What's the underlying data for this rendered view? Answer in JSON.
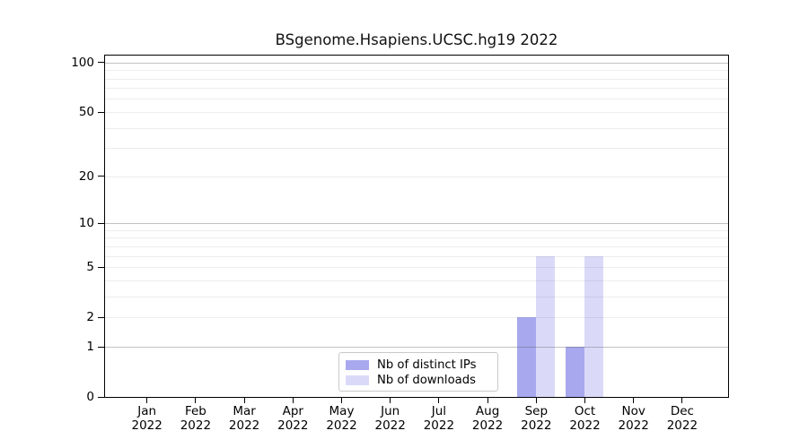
{
  "window": {
    "background": "#ffffff"
  },
  "chart_data": {
    "type": "bar",
    "title": "BSgenome.Hsapiens.UCSC.hg19 2022",
    "xlabel": "",
    "ylabel": "",
    "x": {
      "categories": [
        "Jan",
        "Feb",
        "Mar",
        "Apr",
        "May",
        "Jun",
        "Jul",
        "Aug",
        "Sep",
        "Oct",
        "Nov",
        "Dec"
      ],
      "year_line": "2022"
    },
    "y": {
      "scale": "log1p",
      "ticks": [
        0,
        1,
        2,
        5,
        10,
        20,
        50,
        100
      ],
      "limit_top": 112,
      "grid_major": [
        1,
        10,
        100
      ],
      "grid_minor": [
        2,
        3,
        4,
        5,
        6,
        7,
        8,
        9,
        20,
        30,
        40,
        50,
        60,
        70,
        80,
        90
      ]
    },
    "series": [
      {
        "name": "Nb of distinct IPs",
        "color": "#a8a8ee",
        "values": [
          0,
          0,
          0,
          0,
          0,
          0,
          0,
          0,
          2,
          1,
          0,
          0
        ]
      },
      {
        "name": "Nb of downloads",
        "color": "#dadaf8",
        "values": [
          0,
          0,
          0,
          0,
          0,
          0,
          0,
          0,
          6,
          6,
          0,
          0
        ]
      }
    ],
    "data_points": [
      {
        "month": "Sep 2022",
        "distinct_ips": 2,
        "downloads": 6
      },
      {
        "month": "Oct 2022",
        "distinct_ips": 1,
        "downloads": 6
      }
    ],
    "legend": {
      "position": "bottom-center",
      "entries": [
        "Nb of distinct IPs",
        "Nb of downloads"
      ]
    },
    "grid": "on"
  },
  "colors": {
    "axis": "#000000",
    "grid_major": "rgba(80,80,80,0.35)",
    "grid_minor": "rgba(80,80,80,0.10)",
    "legend_border": "#c9c9c9",
    "background": "#ffffff"
  }
}
